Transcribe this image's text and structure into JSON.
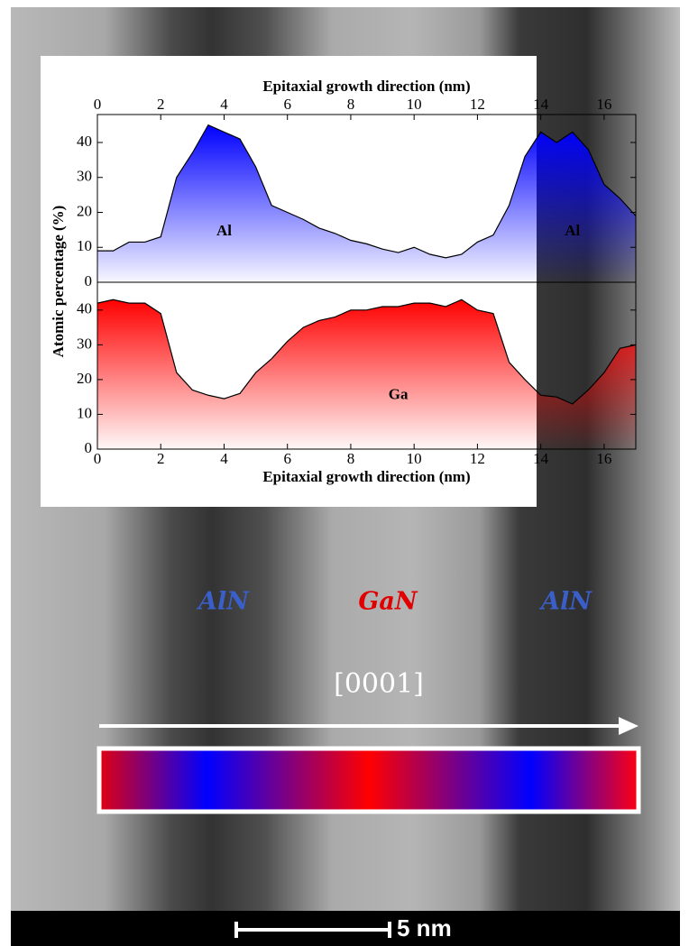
{
  "chart_data": [
    {
      "type": "area",
      "xlabel": "Epitaxial growth direction (nm)",
      "ylabel": "Atomic percentage (%)",
      "x": [
        0,
        0.5,
        1,
        1.5,
        2,
        2.5,
        3,
        3.5,
        4,
        4.5,
        5,
        5.5,
        6,
        6.5,
        7,
        7.5,
        8,
        8.5,
        9,
        9.5,
        10,
        10.5,
        11,
        11.5,
        12,
        12.5,
        13,
        13.5,
        14,
        14.5,
        15,
        15.5,
        16,
        16.5,
        17
      ],
      "series": [
        {
          "name": "Al",
          "color": "#0000ff",
          "values": [
            9,
            9,
            11.5,
            11.5,
            13,
            30,
            37,
            45,
            43,
            41,
            33,
            22,
            20,
            18,
            15.5,
            14,
            12,
            11,
            9.5,
            8.5,
            10,
            8,
            7,
            8,
            11.5,
            13.5,
            22,
            36,
            43,
            40,
            43,
            38,
            28,
            24,
            19
          ]
        }
      ],
      "annotations": [
        "Al",
        "Al"
      ],
      "xlim": [
        0,
        17
      ],
      "xticks": [
        0,
        2,
        4,
        6,
        8,
        10,
        12,
        14,
        16
      ],
      "ylim": [
        0,
        48
      ],
      "yticks": [
        0,
        10,
        20,
        30,
        40
      ]
    },
    {
      "type": "area",
      "xlabel": "Epitaxial growth direction (nm)",
      "x": [
        0,
        0.5,
        1,
        1.5,
        2,
        2.5,
        3,
        3.5,
        4,
        4.5,
        5,
        5.5,
        6,
        6.5,
        7,
        7.5,
        8,
        8.5,
        9,
        9.5,
        10,
        10.5,
        11,
        11.5,
        12,
        12.5,
        13,
        13.5,
        14,
        14.5,
        15,
        15.5,
        16,
        16.5,
        17
      ],
      "series": [
        {
          "name": "Ga",
          "color": "#ff0000",
          "values": [
            42,
            43,
            42,
            42,
            39,
            22,
            17,
            15.5,
            14.5,
            16,
            22,
            26,
            31,
            35,
            37,
            38,
            40,
            40,
            41,
            41,
            42,
            42,
            41,
            43,
            40,
            39,
            25,
            20,
            15.5,
            15,
            13,
            17,
            22,
            29,
            30
          ]
        }
      ],
      "annotations": [
        "Ga"
      ],
      "xlim": [
        0,
        17
      ],
      "xticks": [
        0,
        2,
        4,
        6,
        8,
        10,
        12,
        14,
        16
      ],
      "ylim": [
        0,
        48
      ],
      "yticks": [
        0,
        10,
        20,
        30,
        40
      ]
    }
  ],
  "image_labels": {
    "layers": [
      "AlN",
      "GaN",
      "AlN"
    ],
    "direction": "[0001]",
    "scale_bar": "5 nm"
  }
}
